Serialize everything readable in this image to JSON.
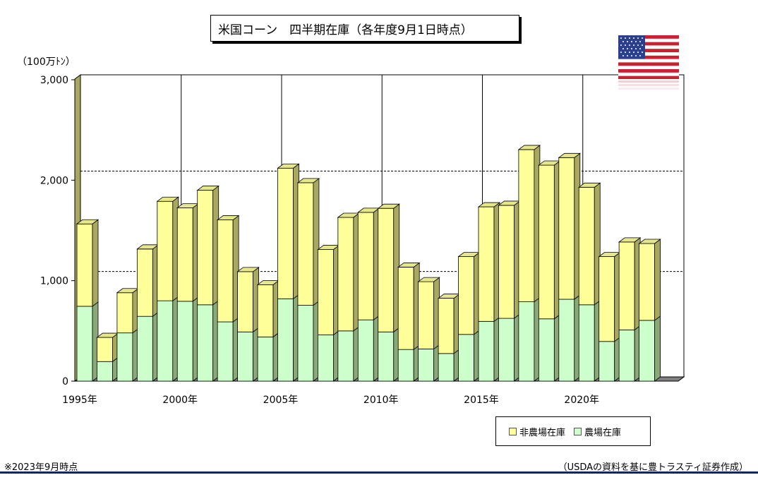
{
  "title": "米国コーン　四半期在庫（各年度9月1日時点）",
  "unit_label": "（100万ﾄﾝ）",
  "legend": {
    "non_farm": "非農場在庫",
    "farm": "農場在庫"
  },
  "note": "※2023年9月時点",
  "source": "（USDAの資料を基に豊トラスティ証券作成）",
  "colors": {
    "farm_front": "#ccffcc",
    "farm_side": "#8aa878",
    "farm_top": "#b9e3b0",
    "nonfarm_front": "#ffff99",
    "nonfarm_side": "#a8a860",
    "nonfarm_top": "#e6e68a",
    "gridline": "#000000",
    "footer_line": "#0e2a5a"
  },
  "chart_data": {
    "type": "bar",
    "stacked": true,
    "three_d": true,
    "categories": [
      "1995",
      "1996",
      "1997",
      "1998",
      "1999",
      "2000",
      "2001",
      "2002",
      "2003",
      "2004",
      "2005",
      "2006",
      "2007",
      "2008",
      "2009",
      "2010",
      "2011",
      "2012",
      "2013",
      "2014",
      "2015",
      "2016",
      "2017",
      "2018",
      "2019",
      "2020",
      "2021",
      "2022",
      "2023"
    ],
    "series": [
      {
        "name": "農場在庫",
        "values": [
          745,
          195,
          480,
          645,
          800,
          795,
          760,
          590,
          490,
          440,
          820,
          755,
          460,
          500,
          610,
          490,
          315,
          320,
          275,
          465,
          595,
          625,
          790,
          620,
          815,
          760,
          395,
          510,
          605
        ]
      },
      {
        "name": "非農場在庫",
        "values": [
          820,
          240,
          400,
          670,
          990,
          930,
          1140,
          1015,
          600,
          520,
          1300,
          1220,
          850,
          1130,
          1070,
          1230,
          820,
          670,
          550,
          775,
          1140,
          1125,
          1515,
          1530,
          1410,
          1170,
          845,
          875,
          765
        ]
      }
    ],
    "x_tick_labels": [
      "1995年",
      "2000年",
      "2005年",
      "2010年",
      "2015年",
      "2020年"
    ],
    "y_tick_labels": [
      "0",
      "1,000",
      "2,000",
      "3,000"
    ],
    "ylim": [
      0,
      3000
    ],
    "grid": "horizontal dashed, vertical solid every 5 years",
    "legend_position": "bottom-right"
  }
}
